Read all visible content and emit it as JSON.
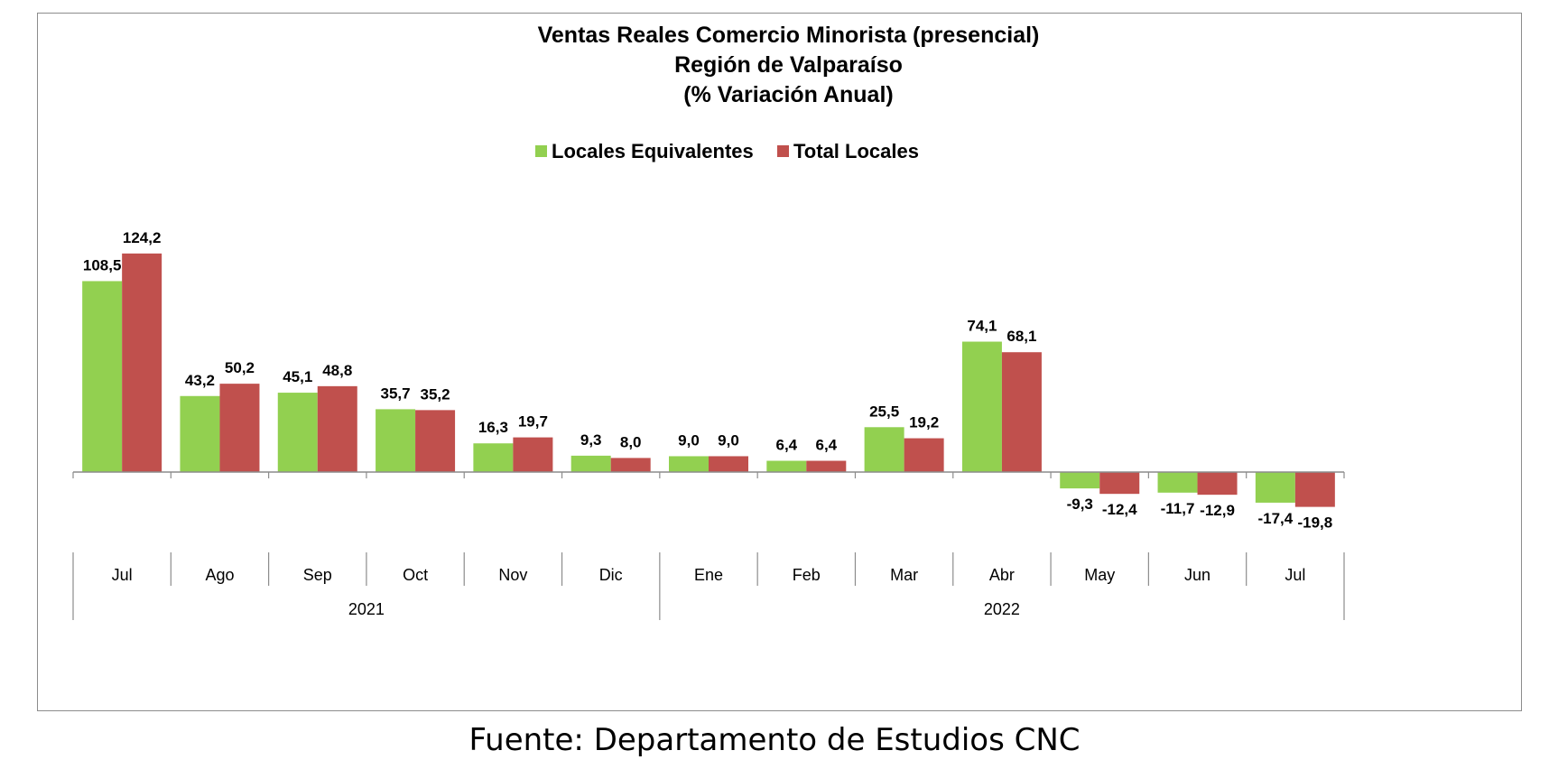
{
  "chart_data": {
    "type": "bar",
    "title_lines": [
      "Ventas Reales Comercio Minorista (presencial)",
      "Región de Valparaíso",
      "(% Variación Anual)"
    ],
    "categories": [
      "Jul",
      "Ago",
      "Sep",
      "Oct",
      "Nov",
      "Dic",
      "Ene",
      "Feb",
      "Mar",
      "Abr",
      "May",
      "Jun",
      "Jul"
    ],
    "year_groups": [
      {
        "label": "2021",
        "count": 6
      },
      {
        "label": "2022",
        "count": 7
      }
    ],
    "series": [
      {
        "name": "Locales Equivalentes",
        "color": "#92d050",
        "values": [
          108.5,
          43.2,
          45.1,
          35.7,
          16.3,
          9.3,
          9.0,
          6.4,
          25.5,
          74.1,
          -9.3,
          -11.7,
          -17.4
        ],
        "labels": [
          "108,5",
          "43,2",
          "45,1",
          "35,7",
          "16,3",
          "9,3",
          "9,0",
          "6,4",
          "25,5",
          "74,1",
          "-9,3",
          "-11,7",
          "-17,4"
        ]
      },
      {
        "name": "Total Locales",
        "color": "#c0504d",
        "values": [
          124.2,
          50.2,
          48.8,
          35.2,
          19.7,
          8.0,
          9.0,
          6.4,
          19.2,
          68.1,
          -12.4,
          -12.9,
          -19.8
        ],
        "labels": [
          "124,2",
          "50,2",
          "48,8",
          "35,2",
          "19,7",
          "8,0",
          "9,0",
          "6,4",
          "19,2",
          "68,1",
          "-12,4",
          "-12,9",
          "-19,8"
        ]
      }
    ],
    "legend_position": "top-center",
    "grid": false,
    "ylim": [
      -30,
      130
    ]
  },
  "source_note": "Fuente: Departamento de Estudios CNC"
}
